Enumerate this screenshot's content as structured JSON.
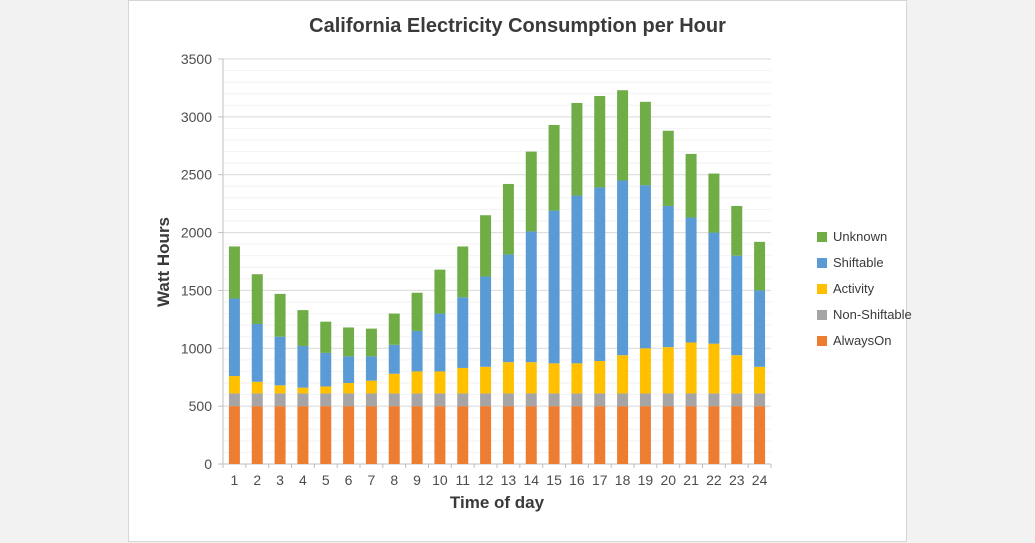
{
  "chart_data": {
    "type": "bar",
    "stacked": true,
    "title": "California Electricity Consumption per Hour",
    "xlabel": "Time of day",
    "ylabel": "Watt Hours",
    "ylim": [
      0,
      3500
    ],
    "ytick_step": 500,
    "minor_grid_step": 100,
    "grid": true,
    "legend_position": "right",
    "categories": [
      1,
      2,
      3,
      4,
      5,
      6,
      7,
      8,
      9,
      10,
      11,
      12,
      13,
      14,
      15,
      16,
      17,
      18,
      19,
      20,
      21,
      22,
      23,
      24
    ],
    "series": [
      {
        "name": "AlwaysOn",
        "color": "#ED7D31",
        "values": [
          500,
          500,
          500,
          500,
          500,
          500,
          500,
          500,
          500,
          500,
          500,
          500,
          500,
          500,
          500,
          500,
          500,
          500,
          500,
          500,
          500,
          500,
          500,
          500
        ]
      },
      {
        "name": "Non-Shiftable",
        "color": "#A5A5A5",
        "values": [
          110,
          110,
          110,
          110,
          110,
          110,
          110,
          110,
          110,
          110,
          110,
          110,
          110,
          110,
          110,
          110,
          110,
          110,
          110,
          110,
          110,
          110,
          110,
          110
        ]
      },
      {
        "name": "Activity",
        "color": "#FFC000",
        "values": [
          150,
          100,
          70,
          50,
          60,
          90,
          110,
          170,
          190,
          190,
          220,
          230,
          270,
          270,
          260,
          260,
          280,
          330,
          390,
          400,
          440,
          430,
          330,
          230
        ]
      },
      {
        "name": "Shiftable",
        "color": "#5B9BD5",
        "values": [
          670,
          500,
          420,
          360,
          290,
          230,
          210,
          250,
          350,
          500,
          610,
          780,
          930,
          1130,
          1320,
          1450,
          1500,
          1510,
          1410,
          1220,
          1080,
          960,
          860,
          660
        ]
      },
      {
        "name": "Unknown",
        "color": "#70AD47",
        "values": [
          450,
          430,
          370,
          310,
          270,
          250,
          240,
          270,
          330,
          380,
          440,
          530,
          610,
          690,
          740,
          800,
          790,
          780,
          720,
          650,
          550,
          510,
          430,
          420
        ]
      }
    ],
    "legend_order": [
      "Unknown",
      "Shiftable",
      "Activity",
      "Non-Shiftable",
      "AlwaysOn"
    ]
  }
}
